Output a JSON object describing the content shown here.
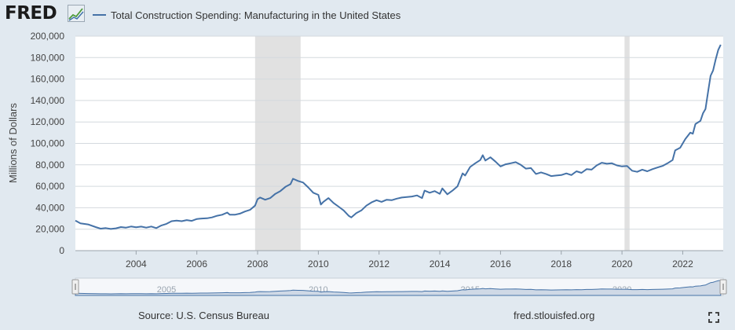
{
  "header": {
    "logo_text": "FRED",
    "series_title": "Total Construction Spending: Manufacturing in the United States"
  },
  "footer": {
    "source": "Source: U.S. Census Bureau",
    "url": "fred.stlouisfed.org"
  },
  "icons": {
    "logo_graph": "graph-trend-icon",
    "fullscreen": "fullscreen-expand-icon"
  },
  "colors": {
    "line": "#4572a7",
    "recession": "#e1e1e1",
    "background": "#e1e9f0",
    "plot_background": "#ffffff",
    "navigator_fill": "#cfd9e6"
  },
  "chart_data": {
    "type": "line",
    "title": "",
    "xlabel": "",
    "ylabel": "Millions of Dollars",
    "ylim": [
      0,
      200000
    ],
    "xlim": [
      "2002-01",
      "2023-05"
    ],
    "yticks": [
      "0",
      "20,000",
      "40,000",
      "60,000",
      "80,000",
      "100,000",
      "120,000",
      "140,000",
      "160,000",
      "180,000",
      "200,000"
    ],
    "xticks": [
      "2004",
      "2006",
      "2008",
      "2010",
      "2012",
      "2014",
      "2016",
      "2018",
      "2020",
      "2022"
    ],
    "navigator_ticks": [
      "2005",
      "2010",
      "2015",
      "2020"
    ],
    "grid": "horizontal",
    "legend": "top-left",
    "recessions": [
      {
        "start": "2007-12",
        "end": "2009-06"
      },
      {
        "start": "2020-02",
        "end": "2020-04"
      }
    ],
    "series": [
      {
        "name": "Total Construction Spending: Manufacturing in the United States",
        "points": [
          [
            "2002-01",
            28000
          ],
          [
            "2002-03",
            25500
          ],
          [
            "2002-06",
            24500
          ],
          [
            "2002-09",
            22000
          ],
          [
            "2002-11",
            20500
          ],
          [
            "2003-01",
            21000
          ],
          [
            "2003-03",
            20200
          ],
          [
            "2003-05",
            20800
          ],
          [
            "2003-07",
            22000
          ],
          [
            "2003-09",
            21500
          ],
          [
            "2003-11",
            22500
          ],
          [
            "2004-01",
            21800
          ],
          [
            "2004-03",
            22400
          ],
          [
            "2004-05",
            21500
          ],
          [
            "2004-07",
            22500
          ],
          [
            "2004-09",
            21000
          ],
          [
            "2004-11",
            23500
          ],
          [
            "2005-01",
            25000
          ],
          [
            "2005-03",
            27500
          ],
          [
            "2005-05",
            28000
          ],
          [
            "2005-07",
            27500
          ],
          [
            "2005-09",
            28500
          ],
          [
            "2005-11",
            27800
          ],
          [
            "2006-01",
            29500
          ],
          [
            "2006-03",
            30000
          ],
          [
            "2006-05",
            30200
          ],
          [
            "2006-07",
            31000
          ],
          [
            "2006-09",
            32500
          ],
          [
            "2006-11",
            33500
          ],
          [
            "2007-01",
            35500
          ],
          [
            "2007-02",
            33500
          ],
          [
            "2007-04",
            33500
          ],
          [
            "2007-06",
            34500
          ],
          [
            "2007-08",
            36500
          ],
          [
            "2007-10",
            38000
          ],
          [
            "2007-12",
            42000
          ],
          [
            "2008-01",
            48000
          ],
          [
            "2008-02",
            49500
          ],
          [
            "2008-04",
            47500
          ],
          [
            "2008-06",
            49000
          ],
          [
            "2008-08",
            53000
          ],
          [
            "2008-10",
            55500
          ],
          [
            "2008-12",
            59500
          ],
          [
            "2009-02",
            62000
          ],
          [
            "2009-03",
            67000
          ],
          [
            "2009-05",
            65000
          ],
          [
            "2009-07",
            63500
          ],
          [
            "2009-09",
            59000
          ],
          [
            "2009-11",
            54000
          ],
          [
            "2010-01",
            52000
          ],
          [
            "2010-02",
            43000
          ],
          [
            "2010-03",
            45500
          ],
          [
            "2010-05",
            49000
          ],
          [
            "2010-07",
            44500
          ],
          [
            "2010-09",
            41000
          ],
          [
            "2010-11",
            37500
          ],
          [
            "2011-01",
            32500
          ],
          [
            "2011-02",
            31000
          ],
          [
            "2011-04",
            35000
          ],
          [
            "2011-06",
            37500
          ],
          [
            "2011-08",
            42000
          ],
          [
            "2011-10",
            45000
          ],
          [
            "2011-12",
            47000
          ],
          [
            "2012-02",
            45500
          ],
          [
            "2012-04",
            47500
          ],
          [
            "2012-06",
            47000
          ],
          [
            "2012-08",
            48500
          ],
          [
            "2012-10",
            49500
          ],
          [
            "2012-12",
            50000
          ],
          [
            "2013-02",
            50500
          ],
          [
            "2013-04",
            51500
          ],
          [
            "2013-06",
            49000
          ],
          [
            "2013-07",
            56000
          ],
          [
            "2013-09",
            54000
          ],
          [
            "2013-11",
            55500
          ],
          [
            "2014-01",
            53000
          ],
          [
            "2014-02",
            58000
          ],
          [
            "2014-04",
            52500
          ],
          [
            "2014-06",
            56000
          ],
          [
            "2014-08",
            60000
          ],
          [
            "2014-10",
            72000
          ],
          [
            "2014-11",
            70000
          ],
          [
            "2015-01",
            78000
          ],
          [
            "2015-03",
            81500
          ],
          [
            "2015-05",
            84500
          ],
          [
            "2015-06",
            89000
          ],
          [
            "2015-07",
            84000
          ],
          [
            "2015-09",
            87000
          ],
          [
            "2015-11",
            83000
          ],
          [
            "2016-01",
            78500
          ],
          [
            "2016-03",
            80500
          ],
          [
            "2016-05",
            81500
          ],
          [
            "2016-07",
            82500
          ],
          [
            "2016-09",
            80000
          ],
          [
            "2016-11",
            76500
          ],
          [
            "2017-01",
            77000
          ],
          [
            "2017-03",
            71500
          ],
          [
            "2017-05",
            73000
          ],
          [
            "2017-07",
            71500
          ],
          [
            "2017-09",
            69500
          ],
          [
            "2017-11",
            70000
          ],
          [
            "2018-01",
            70500
          ],
          [
            "2018-03",
            72000
          ],
          [
            "2018-05",
            70500
          ],
          [
            "2018-07",
            74000
          ],
          [
            "2018-09",
            72500
          ],
          [
            "2018-11",
            76000
          ],
          [
            "2019-01",
            75500
          ],
          [
            "2019-03",
            79500
          ],
          [
            "2019-05",
            82000
          ],
          [
            "2019-07",
            81000
          ],
          [
            "2019-09",
            81500
          ],
          [
            "2019-11",
            79500
          ],
          [
            "2020-01",
            78500
          ],
          [
            "2020-03",
            79000
          ],
          [
            "2020-05",
            74500
          ],
          [
            "2020-07",
            73500
          ],
          [
            "2020-09",
            75500
          ],
          [
            "2020-11",
            74000
          ],
          [
            "2021-01",
            76000
          ],
          [
            "2021-03",
            77500
          ],
          [
            "2021-05",
            79000
          ],
          [
            "2021-07",
            81500
          ],
          [
            "2021-09",
            84500
          ],
          [
            "2021-10",
            93500
          ],
          [
            "2021-12",
            96000
          ],
          [
            "2022-02",
            104000
          ],
          [
            "2022-04",
            110000
          ],
          [
            "2022-05",
            109000
          ],
          [
            "2022-06",
            118000
          ],
          [
            "2022-08",
            121000
          ],
          [
            "2022-09",
            128000
          ],
          [
            "2022-10",
            132000
          ],
          [
            "2022-11",
            148000
          ],
          [
            "2022-12",
            163000
          ],
          [
            "2023-01",
            168000
          ],
          [
            "2023-02",
            178000
          ],
          [
            "2023-03",
            187000
          ],
          [
            "2023-04",
            192000
          ]
        ]
      }
    ]
  }
}
